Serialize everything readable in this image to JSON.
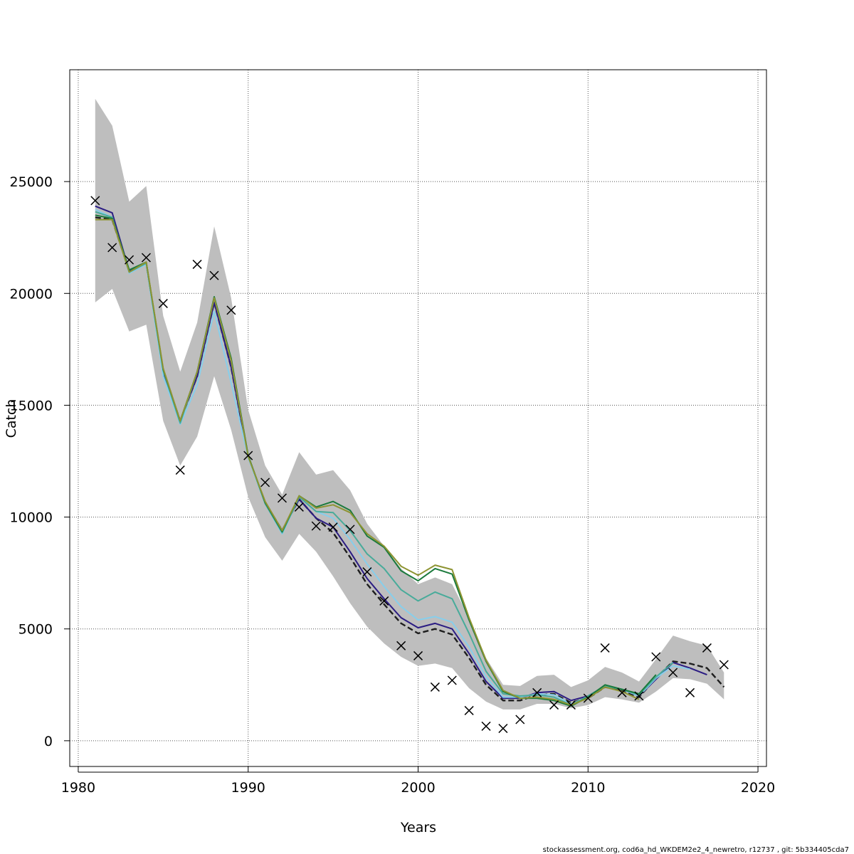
{
  "chart_data": {
    "type": "line",
    "title": "",
    "xlabel": "Years",
    "ylabel": "Catch",
    "xlim": [
      1979.5,
      2020.5
    ],
    "ylim": [
      -1150,
      30000
    ],
    "x_ticks": [
      1980,
      1990,
      2000,
      2010,
      2020
    ],
    "y_ticks": [
      0,
      5000,
      10000,
      15000,
      20000,
      25000
    ],
    "grid": true,
    "band_color": "#bebebe",
    "confidence_band": {
      "years": [
        1981,
        1982,
        1983,
        1984,
        1985,
        1986,
        1987,
        1988,
        1989,
        1990,
        1991,
        1992,
        1993,
        1994,
        1995,
        1996,
        1997,
        1998,
        1999,
        2000,
        2001,
        2002,
        2003,
        2004,
        2005,
        2006,
        2007,
        2008,
        2009,
        2010,
        2011,
        2012,
        2013,
        2014,
        2015,
        2016,
        2017,
        2018
      ],
      "upper": [
        28700,
        27500,
        24100,
        24800,
        19000,
        16500,
        18700,
        23000,
        19800,
        14800,
        12300,
        11000,
        12900,
        11900,
        12100,
        11200,
        9700,
        8700,
        7700,
        7000,
        7300,
        7000,
        5500,
        3700,
        2500,
        2450,
        2900,
        2950,
        2400,
        2700,
        3300,
        3050,
        2650,
        3650,
        4700,
        4450,
        4250,
        3050
      ],
      "lower": [
        19600,
        20200,
        18300,
        18600,
        14300,
        12300,
        13600,
        16300,
        13900,
        10900,
        9100,
        8050,
        9250,
        8450,
        7350,
        6150,
        5100,
        4350,
        3750,
        3350,
        3450,
        3250,
        2350,
        1750,
        1400,
        1400,
        1650,
        1650,
        1450,
        1600,
        1950,
        1850,
        1700,
        2200,
        2800,
        2750,
        2550,
        1850
      ]
    },
    "series": [
      {
        "color": "#1e1e1e",
        "dashed": true,
        "values": [
          23400,
          23300,
          21000,
          21350,
          16500,
          14300,
          16300,
          19600,
          16700,
          12700,
          10650,
          9400,
          10800,
          9950,
          9300,
          8200,
          7000,
          6100,
          5250,
          4800,
          5000,
          4750,
          3700,
          2500,
          1800,
          1800,
          2050,
          2100,
          1700,
          1900,
          2400,
          2250,
          1950,
          2800,
          3550,
          3450,
          3250,
          2400
        ]
      },
      {
        "color": "#2b1c83",
        "dashed": false,
        "values": [
          23900,
          23600,
          21000,
          21350,
          16400,
          14300,
          16300,
          19600,
          16700,
          12700,
          10650,
          9400,
          10800,
          9950,
          9550,
          8450,
          7250,
          6350,
          5500,
          5050,
          5250,
          5000,
          3900,
          2650,
          1900,
          1900,
          2150,
          2200,
          1800,
          2000,
          2450,
          2300,
          2000,
          2750,
          3500,
          3250,
          2950,
          null
        ]
      },
      {
        "color": "#87ceeb",
        "dashed": false,
        "values": [
          23750,
          23400,
          20900,
          21300,
          16300,
          14150,
          15900,
          19200,
          16000,
          12650,
          10600,
          9250,
          10900,
          10250,
          9950,
          9000,
          7900,
          6900,
          6000,
          5400,
          5550,
          5300,
          4200,
          2850,
          1950,
          1950,
          2100,
          2050,
          1650,
          1950,
          2450,
          2300,
          2000,
          2800,
          3350,
          3200,
          null,
          null
        ]
      },
      {
        "color": "#48ab9a",
        "dashed": false,
        "values": [
          23650,
          23400,
          20950,
          21350,
          16550,
          14200,
          16500,
          19800,
          17000,
          12750,
          10600,
          9300,
          10900,
          10250,
          10200,
          9400,
          8350,
          7700,
          6750,
          6250,
          6650,
          6350,
          4800,
          3100,
          2100,
          2000,
          2050,
          1950,
          1600,
          2000,
          2450,
          2300,
          2050,
          2850,
          3500,
          null,
          null,
          null
        ]
      },
      {
        "color": "#1b7a3c",
        "dashed": false,
        "values": [
          23500,
          23350,
          21050,
          21400,
          16600,
          14300,
          16500,
          19850,
          17100,
          12750,
          10650,
          9350,
          10950,
          10450,
          10700,
          10300,
          9150,
          8650,
          7600,
          7150,
          7700,
          7450,
          5400,
          3550,
          2200,
          1900,
          1900,
          1800,
          1550,
          1950,
          2500,
          2300,
          2100,
          2950,
          null,
          null,
          null,
          null
        ]
      },
      {
        "color": "#8e9433",
        "dashed": false,
        "values": [
          23300,
          23300,
          20950,
          21400,
          16650,
          14300,
          16500,
          19800,
          17000,
          12700,
          10700,
          9400,
          10950,
          10400,
          10550,
          10200,
          9250,
          8700,
          7800,
          7400,
          7850,
          7650,
          5500,
          3600,
          2250,
          1900,
          1950,
          1850,
          1600,
          1900,
          2400,
          2200,
          1850,
          null,
          null,
          null,
          null,
          null
        ]
      }
    ],
    "observations": {
      "marker": "x",
      "color": "#000000",
      "years": [
        1981,
        1982,
        1983,
        1984,
        1985,
        1986,
        1987,
        1988,
        1989,
        1990,
        1991,
        1992,
        1993,
        1994,
        1995,
        1996,
        1997,
        1998,
        1999,
        2000,
        2001,
        2002,
        2003,
        2004,
        2005,
        2006,
        2007,
        2008,
        2009,
        2010,
        2011,
        2012,
        2013,
        2014,
        2015,
        2016,
        2017,
        2018
      ],
      "values": [
        24150,
        22050,
        21500,
        21600,
        19550,
        12100,
        21300,
        20800,
        19250,
        12750,
        11550,
        10850,
        10450,
        9600,
        9550,
        9450,
        7550,
        6250,
        4250,
        3800,
        2400,
        2700,
        1350,
        650,
        550,
        950,
        2150,
        1600,
        1600,
        1900,
        4150,
        2150,
        2000,
        3750,
        3050,
        2150,
        4150,
        3400
      ]
    }
  },
  "footer": {
    "text": "stockassessment.org, cod6a_hd_WKDEM2e2_4_newretro, r12737 , git: 5b334405cda7"
  }
}
